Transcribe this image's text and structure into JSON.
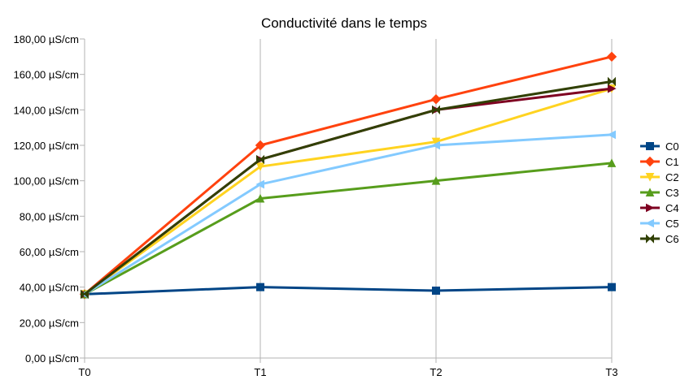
{
  "chart_data": {
    "type": "line",
    "title": "Conductivité dans le temps",
    "categories": [
      "T0",
      "T1",
      "T2",
      "T3"
    ],
    "ylim": [
      0,
      180
    ],
    "yticks": [
      0,
      20,
      40,
      60,
      80,
      100,
      120,
      140,
      160,
      180
    ],
    "ytick_labels": [
      "0,00 µS/cm",
      "20,00 µS/cm",
      "40,00 µS/cm",
      "60,00 µS/cm",
      "80,00 µS/cm",
      "100,00 µS/cm",
      "120,00 µS/cm",
      "140,00 µS/cm",
      "160,00 µS/cm",
      "180,00 µS/cm"
    ],
    "grid": "vertical",
    "legend": "right",
    "series": [
      {
        "name": "C0",
        "values": [
          36,
          40,
          38,
          40
        ],
        "color": "#004586",
        "marker": "square"
      },
      {
        "name": "C1",
        "values": [
          36,
          120,
          146,
          170
        ],
        "color": "#ff420e",
        "marker": "diamond"
      },
      {
        "name": "C2",
        "values": [
          36,
          108,
          122,
          152
        ],
        "color": "#ffd320",
        "marker": "triangle-down"
      },
      {
        "name": "C3",
        "values": [
          36,
          90,
          100,
          110
        ],
        "color": "#579d1c",
        "marker": "triangle-up"
      },
      {
        "name": "C4",
        "values": [
          36,
          112,
          140,
          152
        ],
        "color": "#7e0021",
        "marker": "triangle-right"
      },
      {
        "name": "C5",
        "values": [
          36,
          98,
          120,
          126
        ],
        "color": "#83caff",
        "marker": "triangle-left"
      },
      {
        "name": "C6",
        "values": [
          36,
          112,
          140,
          156
        ],
        "color": "#314004",
        "marker": "bowtie"
      }
    ]
  }
}
